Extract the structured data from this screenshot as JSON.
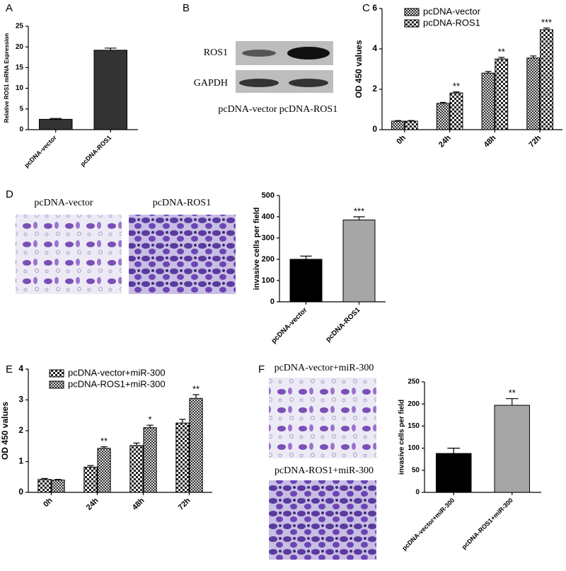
{
  "panel_labels": [
    "A",
    "B",
    "C",
    "D",
    "E",
    "F"
  ],
  "blot": {
    "row_labels": [
      "ROS1",
      "GAPDH"
    ],
    "lane_labels": [
      "pcDNA-vector",
      "pcDNA-ROS1"
    ]
  },
  "images": {
    "D": [
      "pcDNA-vector",
      "pcDNA-ROS1"
    ],
    "F": [
      "pcDNA-vector+miR-300",
      "pcDNA-ROS1+miR-300"
    ]
  },
  "chart_data": [
    {
      "type": "bar",
      "ylabel": "Relative ROS1 mRNA Expression",
      "categories": [
        "pcDNA-vector",
        "pcDNA-ROS1"
      ],
      "values": [
        2.5,
        19.2
      ],
      "errors": [
        0.2,
        0.5
      ],
      "colors": [
        "#333333",
        "#333333"
      ],
      "ylim": [
        0,
        25
      ],
      "yticks": [
        0,
        5,
        10,
        15,
        20,
        25
      ]
    },
    {
      "type": "grouped-bar",
      "ylabel": "OD 450 values",
      "categories": [
        "0h",
        "24h",
        "48h",
        "72h"
      ],
      "series": [
        {
          "name": "pcDNA-vector",
          "fill_pattern": "checker-fine",
          "values": [
            0.42,
            1.3,
            2.8,
            3.55
          ],
          "errors": [
            0.03,
            0.05,
            0.08,
            0.1
          ]
        },
        {
          "name": "pcDNA-ROS1",
          "fill_pattern": "checker-coarse",
          "values": [
            0.42,
            1.82,
            3.5,
            4.95
          ],
          "errors": [
            0.03,
            0.05,
            0.08,
            0.08
          ],
          "significance": [
            null,
            "**",
            "**",
            "***"
          ]
        }
      ],
      "ylim": [
        0,
        6
      ],
      "yticks": [
        0,
        2,
        4,
        6
      ]
    },
    {
      "type": "bar",
      "ylabel": "invasive cells per field",
      "categories": [
        "pcDNA-vector",
        "pcDNA-ROS1"
      ],
      "values": [
        200,
        385
      ],
      "errors": [
        15,
        15
      ],
      "colors": [
        "#000000",
        "#a6a6a6"
      ],
      "significance": [
        null,
        "***"
      ],
      "ylim": [
        0,
        500
      ],
      "yticks": [
        0,
        100,
        200,
        300,
        400,
        500
      ]
    },
    {
      "type": "grouped-bar",
      "ylabel": "OD 450 values",
      "categories": [
        "0h",
        "24h",
        "48h",
        "72h"
      ],
      "series": [
        {
          "name": "pcDNA-vector+miR-300",
          "fill_pattern": "checker-coarse",
          "values": [
            0.42,
            0.82,
            1.52,
            2.25
          ],
          "errors": [
            0.03,
            0.05,
            0.08,
            0.12
          ]
        },
        {
          "name": "pcDNA-ROS1+miR-300",
          "fill_pattern": "checker-fine",
          "values": [
            0.4,
            1.43,
            2.1,
            3.05
          ],
          "errors": [
            0.02,
            0.05,
            0.08,
            0.12
          ],
          "significance": [
            null,
            "**",
            "*",
            "**"
          ]
        }
      ],
      "ylim": [
        0,
        4
      ],
      "yticks": [
        0,
        1,
        2,
        3,
        4
      ]
    },
    {
      "type": "bar",
      "ylabel": "invasive cells per field",
      "categories": [
        "pcDNA-vector+miR-300",
        "pcDNA-ROS1+miR-300"
      ],
      "values": [
        88,
        197
      ],
      "errors": [
        12,
        15
      ],
      "colors": [
        "#000000",
        "#a6a6a6"
      ],
      "significance": [
        null,
        "**"
      ],
      "ylim": [
        0,
        250
      ],
      "yticks": [
        0,
        50,
        100,
        150,
        200,
        250
      ]
    }
  ]
}
